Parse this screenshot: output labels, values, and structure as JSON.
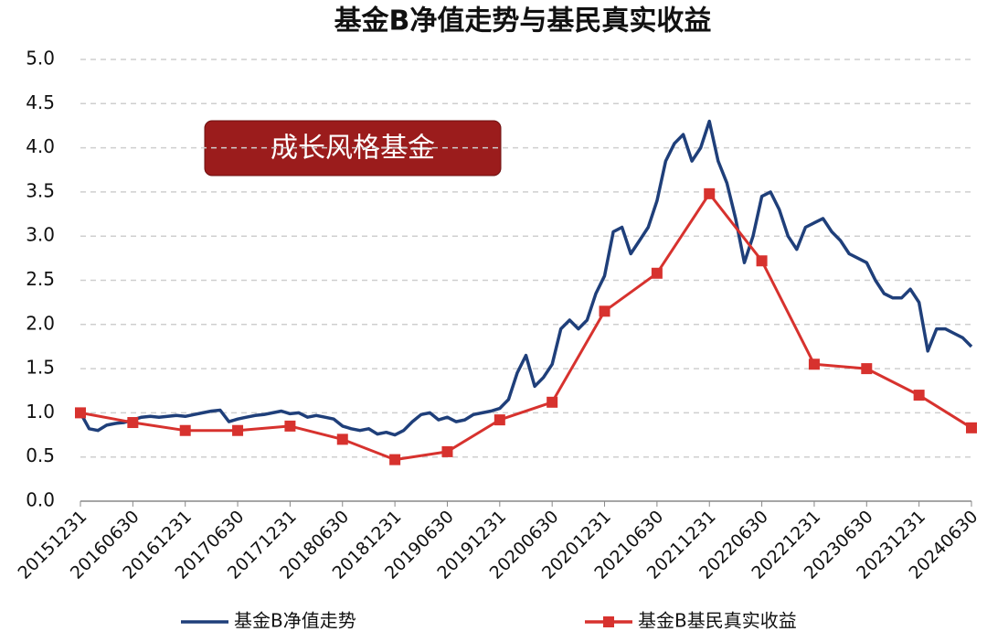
{
  "chart_data": {
    "type": "line",
    "title": "基金B净值走势与基民真实收益",
    "annotation": "成长风格基金",
    "categories": [
      "20151231",
      null,
      null,
      null,
      null,
      null,
      "20160630",
      null,
      null,
      null,
      null,
      null,
      "20161231",
      null,
      null,
      null,
      null,
      null,
      "20170630",
      null,
      null,
      null,
      null,
      null,
      "20171231",
      null,
      null,
      null,
      null,
      null,
      "20180630",
      null,
      null,
      null,
      null,
      null,
      "20181231",
      null,
      null,
      null,
      null,
      null,
      "20190630",
      null,
      null,
      null,
      null,
      null,
      "20191231",
      null,
      null,
      null,
      null,
      null,
      "20200630",
      null,
      null,
      null,
      null,
      null,
      "20201231",
      null,
      null,
      null,
      null,
      null,
      "20210630",
      null,
      null,
      null,
      null,
      null,
      "20211231",
      null,
      null,
      null,
      null,
      null,
      "20220630",
      null,
      null,
      null,
      null,
      null,
      "20221231",
      null,
      null,
      null,
      null,
      null,
      "20230630",
      null,
      null,
      null,
      null,
      null,
      "20231231",
      null,
      null,
      null,
      null,
      null,
      "20240630"
    ],
    "series": [
      {
        "name": "基金B净值走势",
        "color": "#1f3f7a",
        "marker": "none",
        "values": [
          1.0,
          0.82,
          0.8,
          0.86,
          0.88,
          0.89,
          0.92,
          0.95,
          0.96,
          0.95,
          0.96,
          0.97,
          0.96,
          0.98,
          1.0,
          1.02,
          1.03,
          0.9,
          0.93,
          0.95,
          0.97,
          0.98,
          1.0,
          1.02,
          0.99,
          1.0,
          0.95,
          0.97,
          0.95,
          0.93,
          0.85,
          0.82,
          0.8,
          0.82,
          0.76,
          0.78,
          0.75,
          0.8,
          0.9,
          0.98,
          1.0,
          0.92,
          0.95,
          0.9,
          0.92,
          0.98,
          1.0,
          1.02,
          1.05,
          1.15,
          1.45,
          1.65,
          1.3,
          1.4,
          1.55,
          1.95,
          2.05,
          1.95,
          2.05,
          2.35,
          2.55,
          3.05,
          3.1,
          2.8,
          2.95,
          3.1,
          3.4,
          3.85,
          4.05,
          4.15,
          3.85,
          4.0,
          4.3,
          3.85,
          3.6,
          3.2,
          2.7,
          3.0,
          3.45,
          3.5,
          3.3,
          3.0,
          2.85,
          3.1,
          3.15,
          3.2,
          3.05,
          2.95,
          2.8,
          2.75,
          2.7,
          2.5,
          2.35,
          2.3,
          2.3,
          2.4,
          2.25,
          1.7,
          1.95,
          1.95,
          1.9,
          1.85,
          1.75
        ]
      },
      {
        "name": "基金B基民真实收益",
        "color": "#d7322e",
        "marker": "square",
        "x": [
          "20151231",
          "20160630",
          "20161231",
          "20170630",
          "20171231",
          "20180630",
          "20181231",
          "20190630",
          "20191231",
          "20200630",
          "20201231",
          "20210630",
          "20211231",
          "20220630",
          "20221231",
          "20230630",
          "20231231",
          "20240630"
        ],
        "values": [
          1.0,
          0.89,
          0.8,
          0.8,
          0.85,
          0.7,
          0.47,
          0.56,
          0.92,
          1.12,
          2.15,
          2.58,
          3.48,
          2.72,
          1.55,
          1.5,
          1.2,
          0.83
        ]
      }
    ],
    "ylim": [
      0,
      5
    ],
    "yticks": [
      {
        "value": 0,
        "label": "0.0"
      },
      0.5,
      {
        "value": 1,
        "label": "1.0"
      },
      1.5,
      {
        "value": 2,
        "label": "2.0"
      },
      2.5,
      {
        "value": 3,
        "label": "3.0"
      },
      3.5,
      {
        "value": 4,
        "label": "4.0"
      },
      4.5,
      {
        "value": 5,
        "label": "5.0"
      }
    ],
    "grid": true
  }
}
